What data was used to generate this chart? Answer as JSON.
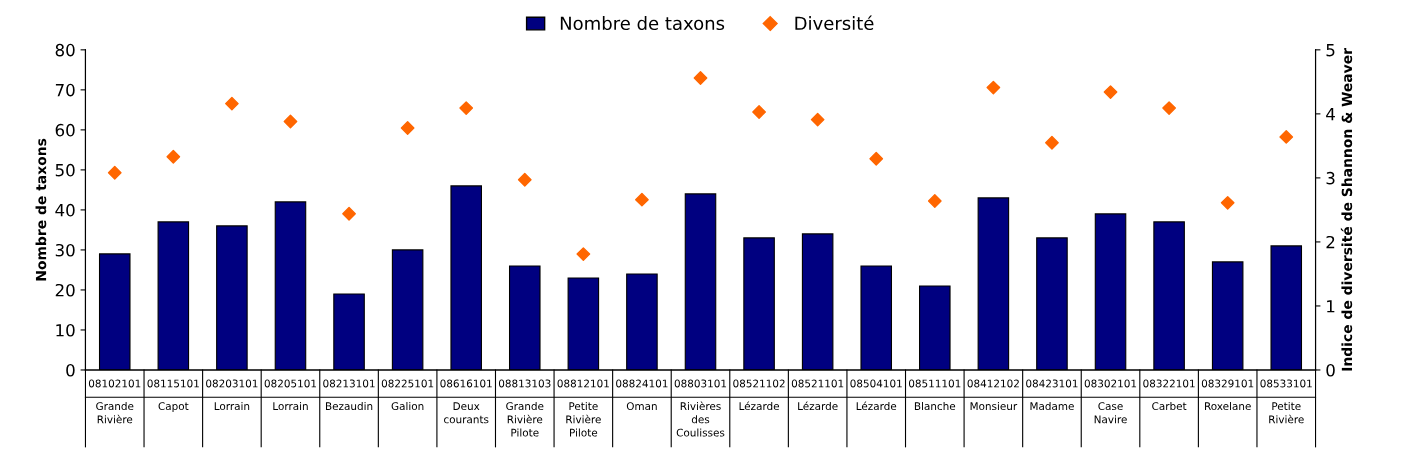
{
  "chart_data": {
    "type": "bar",
    "ylabel": "Nombre de taxons",
    "y2label": "Indice de diversité de Shannon & Weaver",
    "categories": [
      "08102101 Grande Rivière",
      "08115101 Capot",
      "08203101 Lorrain",
      "08205101 Lorrain",
      "08213101 Bezaudin",
      "08225101 Galion",
      "08616101 Deux courants",
      "08813103 Grande Rivière Pilote",
      "08812101 Petite Rivière Pilote",
      "08824101 Oman",
      "08803101 Rivières des Coulisses",
      "08521102 Lézarde",
      "08521101 Lézarde",
      "08504101 Lézarde",
      "08511101 Blanche",
      "08412102 Monsieur",
      "08423101 Madame",
      "08302101 Case Navire",
      "08322101 Carbet",
      "08329101 Roxelane",
      "08533101 Petite Rivière"
    ],
    "series": [
      {
        "name": "Nombre de taxons",
        "color": "#000080",
        "values": [
          29,
          37,
          36,
          42,
          19,
          30,
          46,
          26,
          23,
          24,
          44,
          33,
          34,
          26,
          21,
          43,
          33,
          39,
          37,
          27,
          31
        ]
      },
      {
        "name": "Diversité",
        "type": "scatter",
        "axis": "y2",
        "color": "#ff6600",
        "marker": "diamond",
        "values": [
          3.08,
          3.33,
          4.16,
          3.88,
          2.44,
          3.78,
          4.09,
          2.97,
          1.81,
          2.66,
          4.56,
          4.03,
          3.91,
          3.3,
          2.64,
          4.41,
          3.55,
          4.34,
          4.09,
          2.61,
          3.64
        ]
      }
    ],
    "ylim": [
      0,
      80
    ],
    "yticks": [
      0,
      10,
      20,
      30,
      40,
      50,
      60,
      70,
      80
    ],
    "y2lim": [
      0,
      5
    ],
    "y2ticks": [
      0,
      1,
      2,
      3,
      4,
      5
    ],
    "grid": false,
    "legend": "top"
  }
}
